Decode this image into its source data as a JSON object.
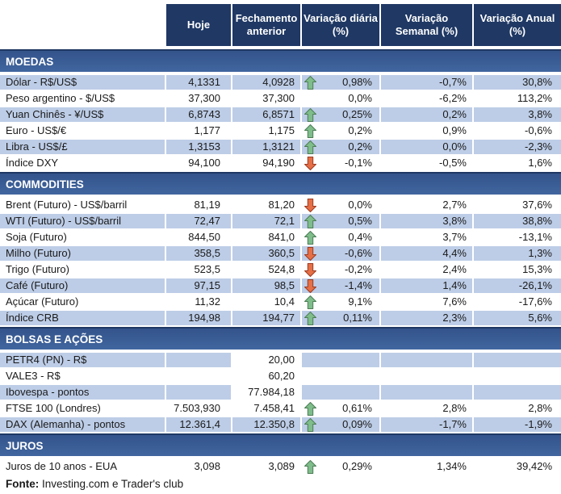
{
  "chart_data": {
    "type": "table",
    "columns": [
      "Hoje",
      "Fechamento anterior",
      "Variação diária (%)",
      "Variação Semanal (%)",
      "Variação Anual (%)"
    ],
    "sections": [
      {
        "title": "MOEDAS",
        "rows": [
          {
            "label": "Dólar - R$/US$",
            "hoje": "4,1331",
            "fechamento": "4,0928",
            "arrow": "up",
            "diaria": "0,98%",
            "semanal": "-0,7%",
            "anual": "30,8%",
            "shaded": true,
            "fechamento_white": false
          },
          {
            "label": "Peso argentino - $/US$",
            "hoje": "37,300",
            "fechamento": "37,300",
            "arrow": "",
            "diaria": "0,0%",
            "semanal": "-6,2%",
            "anual": "113,2%",
            "shaded": false,
            "fechamento_white": false
          },
          {
            "label": "Yuan Chinês - ¥/US$",
            "hoje": "6,8743",
            "fechamento": "6,8571",
            "arrow": "up",
            "diaria": "0,25%",
            "semanal": "0,2%",
            "anual": "3,8%",
            "shaded": true,
            "fechamento_white": false
          },
          {
            "label": "Euro - US$/€",
            "hoje": "1,177",
            "fechamento": "1,175",
            "arrow": "up",
            "diaria": "0,2%",
            "semanal": "0,9%",
            "anual": "-0,6%",
            "shaded": false,
            "fechamento_white": false
          },
          {
            "label": "Libra - US$/£",
            "hoje": "1,3153",
            "fechamento": "1,3121",
            "arrow": "up",
            "diaria": "0,2%",
            "semanal": "0,0%",
            "anual": "-2,3%",
            "shaded": true,
            "fechamento_white": false
          },
          {
            "label": "Índice DXY",
            "hoje": "94,100",
            "fechamento": "94,190",
            "arrow": "down",
            "diaria": "-0,1%",
            "semanal": "-0,5%",
            "anual": "1,6%",
            "shaded": false,
            "fechamento_white": false
          }
        ]
      },
      {
        "title": "COMMODITIES",
        "rows": [
          {
            "label": "Brent (Futuro) - US$/barril",
            "hoje": "81,19",
            "fechamento": "81,20",
            "arrow": "down",
            "diaria": "0,0%",
            "semanal": "2,7%",
            "anual": "37,6%",
            "shaded": false,
            "fechamento_white": false
          },
          {
            "label": "WTI (Futuro) - US$/barril",
            "hoje": "72,47",
            "fechamento": "72,1",
            "arrow": "up",
            "diaria": "0,5%",
            "semanal": "3,8%",
            "anual": "38,8%",
            "shaded": true,
            "fechamento_white": false
          },
          {
            "label": "Soja (Futuro)",
            "hoje": "844,50",
            "fechamento": "841,0",
            "arrow": "up",
            "diaria": "0,4%",
            "semanal": "3,7%",
            "anual": "-13,1%",
            "shaded": false,
            "fechamento_white": false
          },
          {
            "label": "Milho (Futuro)",
            "hoje": "358,5",
            "fechamento": "360,5",
            "arrow": "down",
            "diaria": "-0,6%",
            "semanal": "4,4%",
            "anual": "1,3%",
            "shaded": true,
            "fechamento_white": false
          },
          {
            "label": "Trigo (Futuro)",
            "hoje": "523,5",
            "fechamento": "524,8",
            "arrow": "down",
            "diaria": "-0,2%",
            "semanal": "2,4%",
            "anual": "15,3%",
            "shaded": false,
            "fechamento_white": false
          },
          {
            "label": "Café (Futuro)",
            "hoje": "97,15",
            "fechamento": "98,5",
            "arrow": "down",
            "diaria": "-1,4%",
            "semanal": "1,4%",
            "anual": "-26,1%",
            "shaded": true,
            "fechamento_white": false
          },
          {
            "label": "Açúcar (Futuro)",
            "hoje": "11,32",
            "fechamento": "10,4",
            "arrow": "up",
            "diaria": "9,1%",
            "semanal": "7,6%",
            "anual": "-17,6%",
            "shaded": false,
            "fechamento_white": false
          },
          {
            "label": "Índice CRB",
            "hoje": "194,98",
            "fechamento": "194,77",
            "arrow": "up",
            "diaria": "0,11%",
            "semanal": "2,3%",
            "anual": "5,6%",
            "shaded": true,
            "fechamento_white": false
          }
        ]
      },
      {
        "title": "BOLSAS E AÇÕES",
        "rows": [
          {
            "label": "PETR4 (PN) - R$",
            "hoje": "",
            "fechamento": "20,00",
            "arrow": "",
            "diaria": "",
            "semanal": "",
            "anual": "",
            "shaded": true,
            "fechamento_white": true
          },
          {
            "label": "VALE3 - R$",
            "hoje": "",
            "fechamento": "60,20",
            "arrow": "",
            "diaria": "",
            "semanal": "",
            "anual": "",
            "shaded": false,
            "fechamento_white": false
          },
          {
            "label": "Ibovespa - pontos",
            "hoje": "",
            "fechamento": "77.984,18",
            "arrow": "",
            "diaria": "",
            "semanal": "",
            "anual": "",
            "shaded": true,
            "fechamento_white": true
          },
          {
            "label": "FTSE 100 (Londres)",
            "hoje": "7.503,930",
            "fechamento": "7.458,41",
            "arrow": "up",
            "diaria": "0,61%",
            "semanal": "2,8%",
            "anual": "2,8%",
            "shaded": false,
            "fechamento_white": false
          },
          {
            "label": "DAX (Alemanha) - pontos",
            "hoje": "12.361,4",
            "fechamento": "12.350,8",
            "arrow": "up",
            "diaria": "0,09%",
            "semanal": "-1,7%",
            "anual": "-1,9%",
            "shaded": true,
            "fechamento_white": false
          }
        ]
      },
      {
        "title": "JUROS",
        "rows": [
          {
            "label": "Juros de 10 anos - EUA",
            "hoje": "3,098",
            "fechamento": "3,089",
            "arrow": "up",
            "diaria": "0,29%",
            "semanal": "1,34%",
            "anual": "39,42%",
            "shaded": false,
            "fechamento_white": false
          }
        ]
      }
    ],
    "footer": {
      "label": "Fonte:",
      "text": " Investing.com e Trader's club"
    }
  },
  "colors": {
    "header_bg": "#1F3864",
    "section_bg_top": "#33538B",
    "section_bg_bottom": "#41669F",
    "section_border": "#1F3864",
    "shaded_row": "#BDCDE7",
    "text_color": "#1a1a1a",
    "up_fill": "#7FBD8B",
    "up_stroke": "#4C7C55",
    "down_fill": "#E56F47",
    "down_stroke": "#9C3A1F"
  }
}
